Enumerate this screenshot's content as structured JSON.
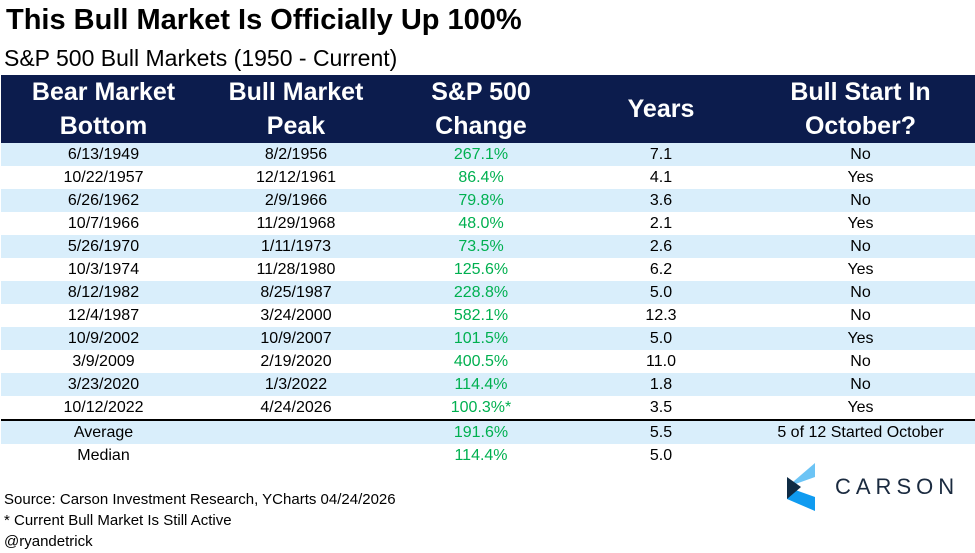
{
  "title": "This Bull Market Is Officially Up 100%",
  "subtitle": "S&P 500 Bull Markets (1950 - Current)",
  "headers": [
    [
      "Bear Market",
      "Bottom"
    ],
    [
      "Bull Market",
      "Peak"
    ],
    [
      "S&P 500",
      "Change"
    ],
    [
      "Years",
      ""
    ],
    [
      "Bull Start In",
      "October?"
    ]
  ],
  "rows": [
    [
      "6/13/1949",
      "8/2/1956",
      "267.1%",
      "7.1",
      "No"
    ],
    [
      "10/22/1957",
      "12/12/1961",
      "86.4%",
      "4.1",
      "Yes"
    ],
    [
      "6/26/1962",
      "2/9/1966",
      "79.8%",
      "3.6",
      "No"
    ],
    [
      "10/7/1966",
      "11/29/1968",
      "48.0%",
      "2.1",
      "Yes"
    ],
    [
      "5/26/1970",
      "1/11/1973",
      "73.5%",
      "2.6",
      "No"
    ],
    [
      "10/3/1974",
      "11/28/1980",
      "125.6%",
      "6.2",
      "Yes"
    ],
    [
      "8/12/1982",
      "8/25/1987",
      "228.8%",
      "5.0",
      "No"
    ],
    [
      "12/4/1987",
      "3/24/2000",
      "582.1%",
      "12.3",
      "No"
    ],
    [
      "10/9/2002",
      "10/9/2007",
      "101.5%",
      "5.0",
      "Yes"
    ],
    [
      "3/9/2009",
      "2/19/2020",
      "400.5%",
      "11.0",
      "No"
    ],
    [
      "3/23/2020",
      "1/3/2022",
      "114.4%",
      "1.8",
      "No"
    ],
    [
      "10/12/2022",
      "4/24/2026",
      "100.3%*",
      "3.5",
      "Yes"
    ]
  ],
  "average": {
    "label": "Average",
    "change": "191.6%",
    "years": "5.5",
    "october": "5 of 12 Started October"
  },
  "median": {
    "label": "Median",
    "change": "114.4%",
    "years": "5.0"
  },
  "footer": [
    "Source: Carson Investment Research, YCharts 04/24/2026",
    "* Current Bull Market Is Still Active",
    "@ryandetrick"
  ],
  "logo": "CARSON"
}
